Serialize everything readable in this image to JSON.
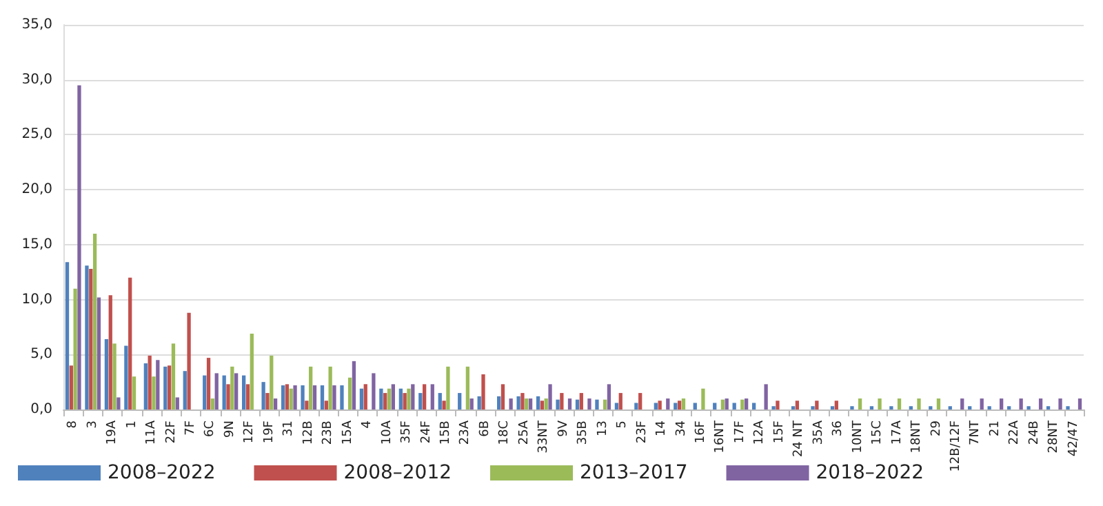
{
  "chart_data": {
    "type": "bar",
    "categories": [
      "8",
      "3",
      "19A",
      "1",
      "11A",
      "22F",
      "7F",
      "6C",
      "9N",
      "12F",
      "19F",
      "31",
      "12B",
      "23B",
      "15A",
      "4",
      "10A",
      "35F",
      "24F",
      "15B",
      "23A",
      "6B",
      "18C",
      "25A",
      "33NT",
      "9V",
      "35B",
      "13",
      "5",
      "23F",
      "14",
      "34",
      "16F",
      "16NT",
      "17F",
      "12A",
      "15F",
      "24 NT",
      "35A",
      "36",
      "10NT",
      "15C",
      "17A",
      "18NT",
      "29",
      "12B/12F",
      "7NT",
      "21",
      "22A",
      "24B",
      "28NT",
      "42/47"
    ],
    "series": [
      {
        "name": "2008–2022",
        "color": "#4f81bd",
        "values": [
          13.4,
          13.1,
          6.4,
          5.8,
          4.2,
          3.9,
          3.5,
          3.1,
          3.1,
          3.1,
          2.5,
          2.2,
          2.2,
          2.2,
          2.2,
          1.9,
          1.9,
          1.9,
          1.5,
          1.5,
          1.5,
          1.2,
          1.2,
          1.2,
          1.2,
          0.9,
          0.9,
          0.9,
          0.6,
          0.6,
          0.6,
          0.6,
          0.6,
          0.6,
          0.6,
          0.6,
          0.3,
          0.3,
          0.3,
          0.3,
          0.3,
          0.3,
          0.3,
          0.3,
          0.3,
          0.3,
          0.3,
          0.3,
          0.3,
          0.3,
          0.3,
          0.3
        ]
      },
      {
        "name": "2008–2012",
        "color": "#c0504d",
        "values": [
          4.0,
          12.8,
          10.4,
          12.0,
          4.9,
          4.0,
          8.8,
          4.7,
          2.3,
          2.3,
          1.5,
          2.3,
          0.8,
          0.8,
          null,
          2.3,
          1.5,
          1.5,
          2.3,
          0.8,
          null,
          3.2,
          2.3,
          1.5,
          0.8,
          1.5,
          1.5,
          null,
          1.5,
          1.5,
          0.8,
          0.8,
          null,
          null,
          null,
          null,
          0.8,
          0.8,
          0.8,
          0.8,
          null,
          null,
          null,
          null,
          null,
          null,
          null,
          null,
          null,
          null,
          null,
          null
        ]
      },
      {
        "name": "2013–2017",
        "color": "#9bbb59",
        "values": [
          11.0,
          16.0,
          6.0,
          3.0,
          3.0,
          6.0,
          null,
          1.0,
          3.9,
          6.9,
          4.9,
          1.9,
          3.9,
          3.9,
          2.9,
          null,
          1.9,
          1.9,
          null,
          3.9,
          3.9,
          null,
          null,
          1.0,
          1.0,
          null,
          null,
          0.9,
          null,
          null,
          null,
          1.0,
          1.9,
          0.9,
          0.9,
          null,
          null,
          null,
          null,
          null,
          1.0,
          1.0,
          1.0,
          1.0,
          1.0,
          null,
          null,
          null,
          null,
          null,
          null,
          null
        ]
      },
      {
        "name": "2018–2022",
        "color": "#8064a2",
        "values": [
          29.5,
          10.2,
          1.1,
          null,
          4.5,
          1.1,
          null,
          3.3,
          3.3,
          null,
          1.0,
          2.2,
          2.2,
          2.2,
          4.4,
          3.3,
          2.3,
          2.3,
          2.3,
          null,
          1.0,
          null,
          1.0,
          1.0,
          2.3,
          1.0,
          1.0,
          2.3,
          null,
          null,
          1.0,
          null,
          null,
          1.0,
          1.0,
          2.3,
          null,
          null,
          null,
          null,
          null,
          null,
          null,
          null,
          null,
          1.0,
          1.0,
          1.0,
          1.0,
          1.0,
          1.0,
          1.0
        ]
      }
    ],
    "ylim": [
      0,
      35
    ],
    "yticks": [
      {
        "value": 0,
        "label": "0,0"
      },
      {
        "value": 5,
        "label": "5,0"
      },
      {
        "value": 10,
        "label": "10,0"
      },
      {
        "value": 15,
        "label": "15,0"
      },
      {
        "value": 20,
        "label": "20,0"
      },
      {
        "value": 25,
        "label": "25,0"
      },
      {
        "value": 30,
        "label": "30,0"
      },
      {
        "value": 35,
        "label": "35,0"
      }
    ],
    "grid": "y",
    "legend": "bottom left"
  }
}
